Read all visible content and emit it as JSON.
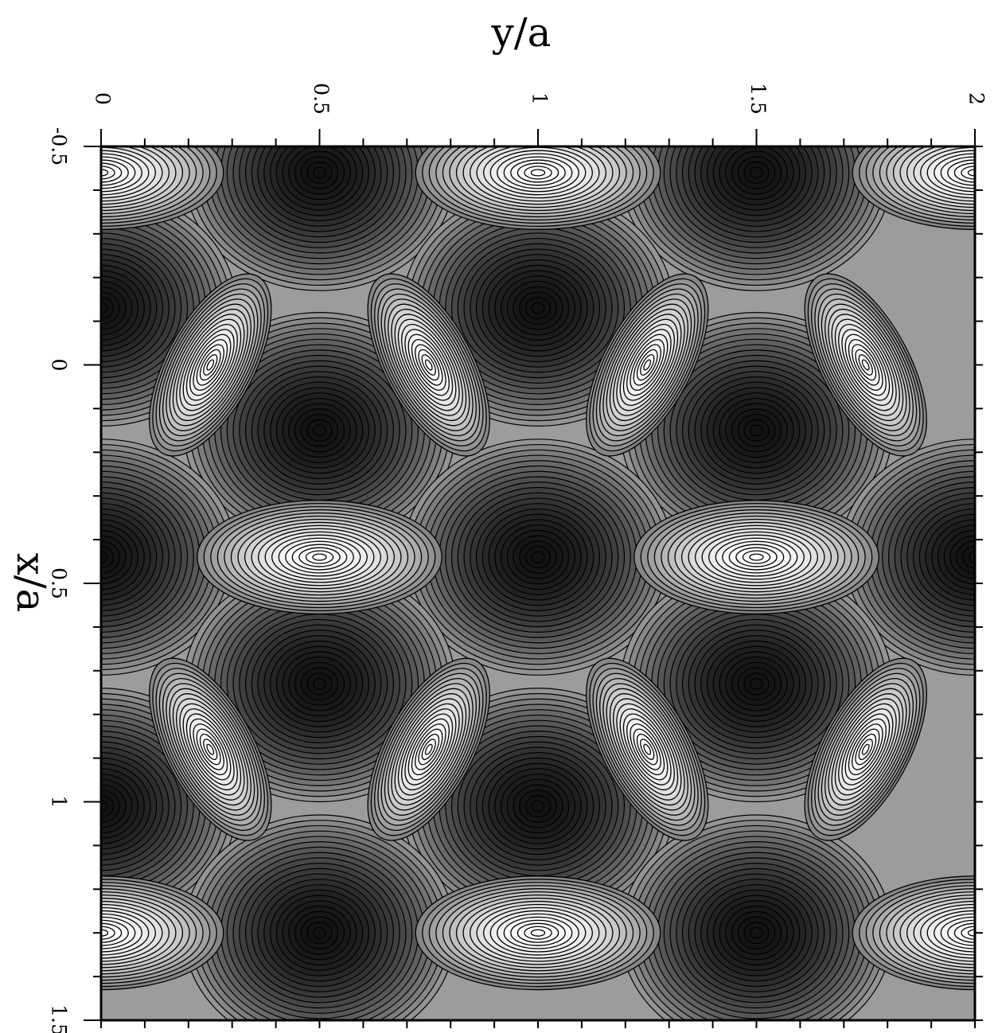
{
  "chart_data": {
    "type": "heatmap",
    "subtype": "contour",
    "title": "",
    "colormap": "grayscale",
    "background_level_color": "#9c9c9c",
    "axes": {
      "x": {
        "label": "x/a",
        "range": [
          -0.5,
          1.5
        ],
        "ticks": [
          -0.5,
          0,
          0.5,
          1,
          1.5
        ],
        "tick_labels": [
          "-0.5",
          "0",
          "0.5",
          "1",
          "1.5"
        ],
        "orientation": "vertical, increasing downward, labels on left rotated"
      },
      "y": {
        "label": "y/a",
        "range": [
          0,
          2
        ],
        "ticks": [
          0,
          0.5,
          1,
          1.5,
          2
        ],
        "tick_labels": [
          "0",
          "0.5",
          "1",
          "1.5",
          "2"
        ],
        "orientation": "horizontal, increasing rightward, labels on top rotated"
      }
    },
    "features": {
      "bright_horizontal_maxima": [
        {
          "x": -0.44,
          "y": 0
        },
        {
          "x": -0.44,
          "y": 1
        },
        {
          "x": -0.44,
          "y": 2
        },
        {
          "x": 0.44,
          "y": 0.5
        },
        {
          "x": 0.44,
          "y": 1.5
        },
        {
          "x": 1.3,
          "y": 0
        },
        {
          "x": 1.3,
          "y": 1
        },
        {
          "x": 1.3,
          "y": 2
        }
      ],
      "bright_tilted_maxima": [
        {
          "x": 0.0,
          "y": 0.25,
          "tilt": "left"
        },
        {
          "x": 0.0,
          "y": 0.75,
          "tilt": "right"
        },
        {
          "x": 0.0,
          "y": 1.25,
          "tilt": "left"
        },
        {
          "x": 0.0,
          "y": 1.75,
          "tilt": "right"
        },
        {
          "x": 0.88,
          "y": 0.25,
          "tilt": "right"
        },
        {
          "x": 0.88,
          "y": 0.75,
          "tilt": "left"
        },
        {
          "x": 0.88,
          "y": 1.25,
          "tilt": "right"
        },
        {
          "x": 0.88,
          "y": 1.75,
          "tilt": "left"
        }
      ],
      "dark_minima": [
        {
          "x": -0.44,
          "y": 0.5
        },
        {
          "x": -0.44,
          "y": 1.5
        },
        {
          "x": -0.13,
          "y": 1
        },
        {
          "x": -0.13,
          "y": 0
        },
        {
          "x": 0.15,
          "y": 0.5
        },
        {
          "x": 0.15,
          "y": 1.5
        },
        {
          "x": 0.44,
          "y": 0
        },
        {
          "x": 0.44,
          "y": 1
        },
        {
          "x": 0.44,
          "y": 2
        },
        {
          "x": 0.73,
          "y": 0.5
        },
        {
          "x": 0.73,
          "y": 1.5
        },
        {
          "x": 1.01,
          "y": 1
        },
        {
          "x": 1.01,
          "y": 0
        },
        {
          "x": 1.3,
          "y": 0.5
        },
        {
          "x": 1.3,
          "y": 1.5
        }
      ]
    }
  }
}
